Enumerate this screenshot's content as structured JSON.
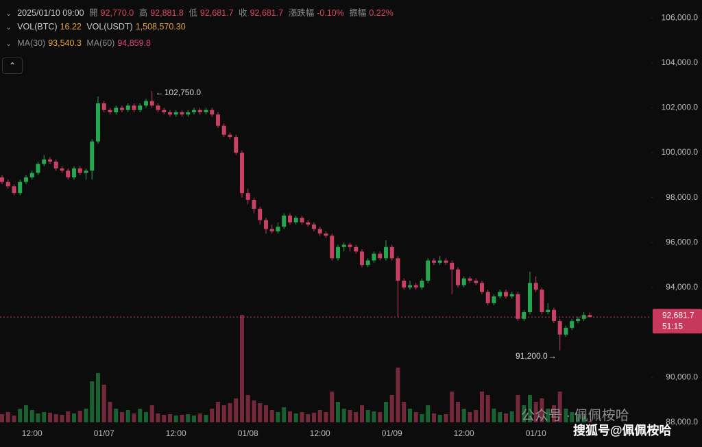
{
  "header": {
    "datetime": "2025/01/10 09:00",
    "open_label": "開",
    "open": "92,770.0",
    "high_label": "高",
    "high": "92,881.8",
    "low_label": "低",
    "low": "92,681.7",
    "close_label": "收",
    "close": "92,681.7",
    "change_label": "漲跌幅",
    "change": "-0.10%",
    "amplitude_label": "振幅",
    "amplitude": "0.22%"
  },
  "volume_info": {
    "btc_label": "VOL(BTC)",
    "btc": "16.22",
    "usdt_label": "VOL(USDT)",
    "usdt": "1,508,570.30"
  },
  "ma_info": {
    "ma30_label": "MA(30)",
    "ma30": "93,540.3",
    "ma60_label": "MA(60)",
    "ma60": "94,859.8"
  },
  "watermark": {
    "wechat": "公众号 · 佩佩桉哈",
    "sohu": "搜狐号@佩佩桉哈"
  },
  "chart_data": {
    "type": "candlestick",
    "up_color": "#25a750",
    "down_color": "#ca3f64",
    "xlim": [
      -0.34,
      108.23
    ],
    "ylim": [
      87900,
      106800
    ],
    "volume_ylim": [
      0,
      2000
    ],
    "yticks": [
      {
        "value": 106000,
        "label": "106,000.0"
      },
      {
        "value": 104000,
        "label": "104,000.0"
      },
      {
        "value": 102000,
        "label": "102,000.0"
      },
      {
        "value": 100000,
        "label": "100,000.0"
      },
      {
        "value": 98000,
        "label": "98,000.0"
      },
      {
        "value": 96000,
        "label": "96,000.0"
      },
      {
        "value": 94000,
        "label": "94,000.0"
      },
      {
        "value": 90000,
        "label": "90,000.0"
      },
      {
        "value": 88000,
        "label": "88,000.0"
      }
    ],
    "xticks": [
      {
        "value": 5,
        "label": "12:00"
      },
      {
        "value": 17,
        "label": "01/07"
      },
      {
        "value": 29,
        "label": "12:00"
      },
      {
        "value": 41,
        "label": "01/08"
      },
      {
        "value": 53,
        "label": "12:00"
      },
      {
        "value": 65,
        "label": "01/09"
      },
      {
        "value": 77,
        "label": "12:00"
      },
      {
        "value": 89,
        "label": "01/10"
      }
    ],
    "candles": [
      [
        98900,
        99000,
        98600,
        98700
      ],
      [
        98700,
        98800,
        98400,
        98500
      ],
      [
        98500,
        98600,
        98100,
        98200
      ],
      [
        98200,
        98800,
        98100,
        98700
      ],
      [
        98700,
        99000,
        98600,
        98900
      ],
      [
        98900,
        99200,
        98800,
        99100
      ],
      [
        99100,
        99600,
        99000,
        99500
      ],
      [
        99500,
        99900,
        99400,
        99700
      ],
      [
        99700,
        99800,
        99500,
        99600
      ],
      [
        99600,
        99700,
        99200,
        99300
      ],
      [
        99300,
        99400,
        99100,
        99200
      ],
      [
        99200,
        99300,
        98800,
        98900
      ],
      [
        98900,
        99400,
        98800,
        99300
      ],
      [
        99300,
        99400,
        99000,
        99100
      ],
      [
        99100,
        99300,
        98800,
        99200
      ],
      [
        99200,
        100600,
        98800,
        100500
      ],
      [
        100500,
        102500,
        100400,
        102200
      ],
      [
        102200,
        102300,
        101800,
        101900
      ],
      [
        101900,
        102000,
        101700,
        101800
      ],
      [
        101800,
        102100,
        101700,
        102000
      ],
      [
        102000,
        102100,
        101800,
        101900
      ],
      [
        101900,
        102200,
        101800,
        102100
      ],
      [
        102100,
        102200,
        101800,
        101900
      ],
      [
        101900,
        102200,
        101800,
        102100
      ],
      [
        102100,
        102400,
        102000,
        102300
      ],
      [
        102300,
        102750,
        102000,
        102100
      ],
      [
        102100,
        102200,
        101800,
        101900
      ],
      [
        101900,
        102000,
        101700,
        101800
      ],
      [
        101800,
        101900,
        101600,
        101700
      ],
      [
        101700,
        101900,
        101600,
        101800
      ],
      [
        101800,
        101900,
        101600,
        101700
      ],
      [
        101700,
        101900,
        101600,
        101800
      ],
      [
        101800,
        102000,
        101700,
        101900
      ],
      [
        101900,
        102000,
        101700,
        101800
      ],
      [
        101800,
        102000,
        101700,
        101900
      ],
      [
        101900,
        102000,
        101600,
        101700
      ],
      [
        101700,
        101800,
        101100,
        101200
      ],
      [
        101200,
        101300,
        100700,
        100800
      ],
      [
        100800,
        100900,
        100600,
        100700
      ],
      [
        100700,
        100800,
        99900,
        100000
      ],
      [
        100000,
        100100,
        98000,
        98200
      ],
      [
        98200,
        98400,
        97700,
        97900
      ],
      [
        97900,
        98000,
        97300,
        97500
      ],
      [
        97500,
        97600,
        96800,
        97000
      ],
      [
        97000,
        97100,
        96400,
        96600
      ],
      [
        96600,
        96800,
        96400,
        96500
      ],
      [
        96500,
        96900,
        96400,
        96700
      ],
      [
        96700,
        97300,
        96600,
        97200
      ],
      [
        97200,
        97300,
        96800,
        96900
      ],
      [
        96900,
        97200,
        96800,
        97100
      ],
      [
        97100,
        97200,
        96800,
        96900
      ],
      [
        96900,
        97000,
        96700,
        96800
      ],
      [
        96800,
        96900,
        96500,
        96600
      ],
      [
        96600,
        96700,
        96300,
        96400
      ],
      [
        96400,
        96500,
        96200,
        96300
      ],
      [
        96300,
        96400,
        95200,
        95300
      ],
      [
        95300,
        95900,
        95200,
        95800
      ],
      [
        95800,
        96000,
        95600,
        95900
      ],
      [
        95900,
        96000,
        95600,
        95800
      ],
      [
        95800,
        95900,
        95500,
        95600
      ],
      [
        95600,
        95700,
        94900,
        95000
      ],
      [
        95000,
        95300,
        94900,
        95200
      ],
      [
        95200,
        95600,
        95100,
        95500
      ],
      [
        95500,
        95600,
        95200,
        95300
      ],
      [
        95300,
        96100,
        95200,
        95800
      ],
      [
        95800,
        95900,
        95200,
        95300
      ],
      [
        95300,
        95400,
        92700,
        94300
      ],
      [
        94300,
        94400,
        93900,
        94000
      ],
      [
        94000,
        94300,
        93900,
        94100
      ],
      [
        94100,
        94200,
        93900,
        94000
      ],
      [
        94000,
        94400,
        93900,
        94300
      ],
      [
        94300,
        95300,
        94200,
        95200
      ],
      [
        95200,
        95300,
        95000,
        95100
      ],
      [
        95100,
        95400,
        95000,
        95200
      ],
      [
        95200,
        95300,
        95000,
        95100
      ],
      [
        95100,
        95200,
        93700,
        94800
      ],
      [
        94800,
        94900,
        94000,
        94100
      ],
      [
        94100,
        94500,
        94000,
        94400
      ],
      [
        94400,
        94500,
        94200,
        94300
      ],
      [
        94300,
        94400,
        94100,
        94200
      ],
      [
        94200,
        94300,
        93700,
        93800
      ],
      [
        93800,
        93900,
        93200,
        93300
      ],
      [
        93300,
        93700,
        93200,
        93600
      ],
      [
        93600,
        93900,
        93500,
        93800
      ],
      [
        93800,
        93900,
        93500,
        93600
      ],
      [
        93600,
        93800,
        93500,
        93700
      ],
      [
        93700,
        93800,
        92500,
        92600
      ],
      [
        92600,
        93000,
        92500,
        92900
      ],
      [
        92900,
        94700,
        92800,
        94200
      ],
      [
        94200,
        94500,
        93800,
        93900
      ],
      [
        93900,
        94000,
        92800,
        92900
      ],
      [
        92900,
        93300,
        92800,
        93000
      ],
      [
        93000,
        93100,
        92400,
        92500
      ],
      [
        92500,
        92600,
        91200,
        91900
      ],
      [
        91900,
        92300,
        91800,
        92200
      ],
      [
        92200,
        92600,
        92100,
        92500
      ],
      [
        92500,
        92700,
        92400,
        92600
      ],
      [
        92600,
        92900,
        92500,
        92770
      ],
      [
        92770,
        92881.8,
        92681.7,
        92681.7
      ]
    ],
    "volumes": [
      120,
      150,
      100,
      200,
      250,
      180,
      130,
      150,
      140,
      120,
      110,
      160,
      130,
      170,
      200,
      600,
      720,
      550,
      300,
      200,
      150,
      180,
      130,
      200,
      150,
      250,
      130,
      110,
      120,
      100,
      110,
      120,
      100,
      130,
      110,
      200,
      300,
      250,
      280,
      350,
      1570,
      400,
      320,
      280,
      250,
      180,
      150,
      220,
      160,
      130,
      150,
      120,
      140,
      180,
      150,
      450,
      300,
      200,
      180,
      150,
      250,
      180,
      160,
      150,
      300,
      400,
      800,
      300,
      200,
      150,
      120,
      250,
      130,
      110,
      120,
      450,
      300,
      200,
      150,
      180,
      450,
      400,
      200,
      150,
      130,
      160,
      400,
      250,
      400,
      300,
      350,
      200,
      250,
      450,
      200,
      150,
      120,
      100,
      20
    ],
    "annotations": [
      {
        "value": 102750,
        "label": "102,750.0"
      },
      {
        "value": 91200,
        "label": "91,200.0"
      }
    ],
    "last_price": {
      "value": 92681.7,
      "label": "92,681.7"
    },
    "countdown": "51:15"
  }
}
